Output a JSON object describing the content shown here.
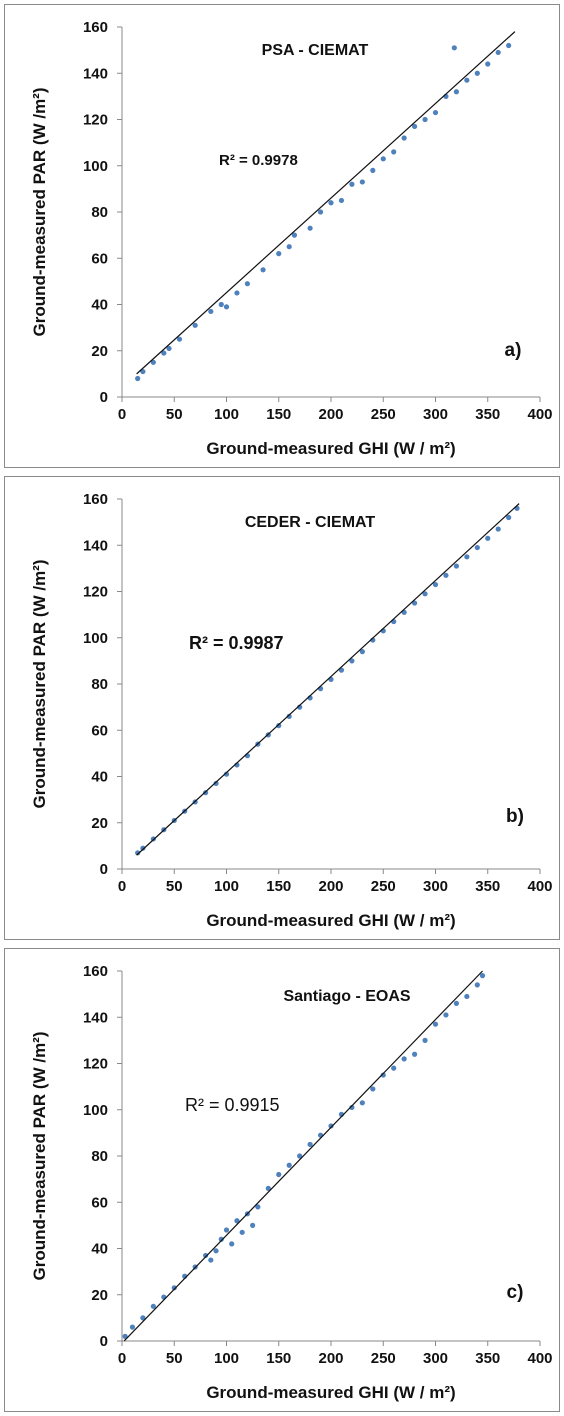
{
  "chart_data": [
    {
      "type": "scatter",
      "title": "PSA - CIEMAT",
      "panel_label": "a)",
      "r2_text": "R² = 0.9978",
      "xlabel": "Ground-measured GHI  (W / m²)",
      "ylabel": "Ground-measured PAR  (W /m²)",
      "xlim": [
        0,
        400
      ],
      "ylim": [
        0,
        160
      ],
      "xticks": [
        "0",
        "50",
        "100",
        "150",
        "200",
        "250",
        "300",
        "350",
        "400"
      ],
      "yticks": [
        "0",
        "20",
        "40",
        "60",
        "80",
        "100",
        "120",
        "140",
        "160"
      ],
      "trendline": {
        "x": [
          14,
          376
        ],
        "y": [
          10,
          158
        ]
      },
      "series": [
        {
          "color": "#4f81bd",
          "x": [
            15,
            20,
            30,
            40,
            45,
            55,
            70,
            85,
            95,
            100,
            110,
            120,
            135,
            150,
            160,
            165,
            180,
            190,
            200,
            210,
            220,
            230,
            240,
            250,
            260,
            270,
            280,
            290,
            300,
            310,
            318,
            320,
            330,
            340,
            350,
            360,
            370
          ],
          "y": [
            8,
            11,
            15,
            19,
            21,
            25,
            31,
            37,
            40,
            39,
            45,
            49,
            55,
            62,
            65,
            70,
            73,
            80,
            84,
            85,
            92,
            93,
            98,
            103,
            106,
            112,
            117,
            120,
            123,
            130,
            151,
            132,
            137,
            140,
            144,
            149,
            152
          ]
        }
      ]
    },
    {
      "type": "scatter",
      "title": "CEDER - CIEMAT",
      "panel_label": "b)",
      "r2_text": "R² = 0.9987",
      "xlabel": "Ground-measured GHI  (W / m²)",
      "ylabel": "Ground-measured PAR  (W /m²)",
      "xlim": [
        0,
        400
      ],
      "ylim": [
        0,
        160
      ],
      "xticks": [
        "0",
        "50",
        "100",
        "150",
        "200",
        "250",
        "300",
        "350",
        "400"
      ],
      "yticks": [
        "0",
        "20",
        "40",
        "60",
        "80",
        "100",
        "120",
        "140",
        "160"
      ],
      "trendline": {
        "x": [
          14,
          380
        ],
        "y": [
          6,
          158
        ]
      },
      "series": [
        {
          "color": "#4f81bd",
          "x": [
            15,
            20,
            30,
            40,
            50,
            60,
            70,
            80,
            90,
            100,
            110,
            120,
            130,
            140,
            150,
            160,
            170,
            180,
            190,
            200,
            210,
            220,
            230,
            240,
            250,
            260,
            270,
            280,
            290,
            300,
            310,
            320,
            330,
            340,
            350,
            360,
            370,
            378
          ],
          "y": [
            7,
            9,
            13,
            17,
            21,
            25,
            29,
            33,
            37,
            41,
            45,
            49,
            54,
            58,
            62,
            66,
            70,
            74,
            78,
            82,
            86,
            90,
            94,
            99,
            103,
            107,
            111,
            115,
            119,
            123,
            127,
            131,
            135,
            139,
            143,
            147,
            152,
            156
          ]
        }
      ]
    },
    {
      "type": "scatter",
      "title": "Santiago - EOAS",
      "panel_label": "c)",
      "r2_text": "R² = 0.9915",
      "xlabel": "Ground-measured GHI  (W / m²)",
      "ylabel": "Ground-measured PAR  (W /m²)",
      "xlim": [
        0,
        400
      ],
      "ylim": [
        0,
        160
      ],
      "xticks": [
        "0",
        "50",
        "100",
        "150",
        "200",
        "250",
        "300",
        "350",
        "400"
      ],
      "yticks": [
        "0",
        "20",
        "40",
        "60",
        "80",
        "100",
        "120",
        "140",
        "160"
      ],
      "trendline": {
        "x": [
          2,
          345
        ],
        "y": [
          0,
          160
        ]
      },
      "series": [
        {
          "color": "#4f81bd",
          "x": [
            3,
            10,
            20,
            30,
            40,
            50,
            60,
            70,
            80,
            85,
            90,
            95,
            100,
            105,
            110,
            115,
            120,
            125,
            130,
            140,
            150,
            160,
            170,
            180,
            190,
            200,
            210,
            220,
            230,
            240,
            250,
            260,
            270,
            280,
            290,
            300,
            310,
            320,
            330,
            340,
            345
          ],
          "y": [
            2,
            6,
            10,
            15,
            19,
            23,
            28,
            32,
            37,
            35,
            39,
            44,
            48,
            42,
            52,
            47,
            55,
            50,
            58,
            66,
            72,
            76,
            80,
            85,
            89,
            93,
            98,
            101,
            103,
            109,
            115,
            118,
            122,
            124,
            130,
            137,
            141,
            146,
            149,
            154,
            158
          ]
        }
      ]
    }
  ]
}
